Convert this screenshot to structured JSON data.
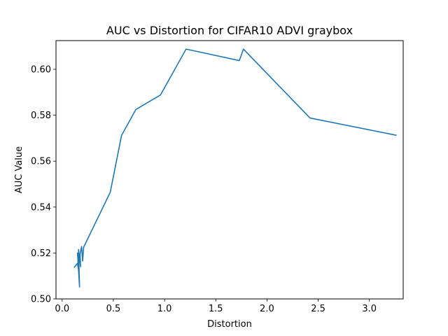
{
  "chart_data": {
    "type": "line",
    "title": "AUC vs Distortion for CIFAR10 ADVI graybox",
    "xlabel": "Distortion",
    "ylabel": "AUC Value",
    "xlim": [
      -0.06,
      3.33
    ],
    "ylim": [
      0.5,
      0.6125
    ],
    "xticks": [
      0.0,
      0.5,
      1.0,
      1.5,
      2.0,
      2.5,
      3.0
    ],
    "xtick_labels": [
      "0.0",
      "0.5",
      "1.0",
      "1.5",
      "2.0",
      "2.5",
      "3.0"
    ],
    "yticks": [
      0.5,
      0.52,
      0.54,
      0.56,
      0.58,
      0.6
    ],
    "ytick_labels": [
      "0.50",
      "0.52",
      "0.54",
      "0.56",
      "0.58",
      "0.60"
    ],
    "grid": false,
    "legend": "none",
    "series": [
      {
        "color": "#1f77b4",
        "x": [
          0.12,
          0.15,
          0.16,
          0.15,
          0.17,
          0.16,
          0.18,
          0.175,
          0.19,
          0.2,
          0.21,
          0.47,
          0.58,
          0.72,
          0.96,
          1.21,
          1.73,
          1.77,
          2.42,
          3.26
        ],
        "y": [
          0.5138,
          0.5155,
          0.5125,
          0.52,
          0.5052,
          0.5215,
          0.514,
          0.5195,
          0.5228,
          0.5165,
          0.5225,
          0.5465,
          0.5712,
          0.5825,
          0.5888,
          0.6088,
          0.6038,
          0.6088,
          0.5788,
          0.5713
        ]
      }
    ]
  }
}
